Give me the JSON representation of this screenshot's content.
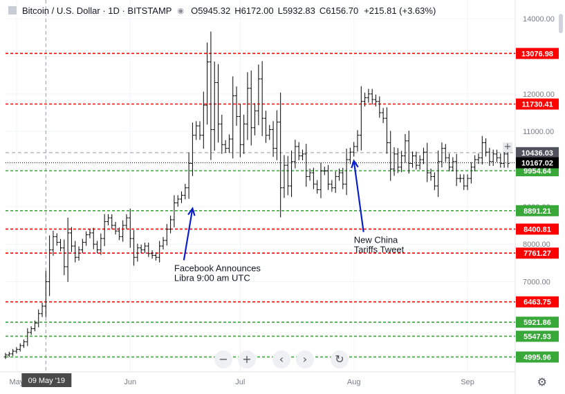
{
  "header": {
    "title": "Bitcoin / U.S. Dollar · 1D · BITSTAMP",
    "ohlc": [
      {
        "k": "O",
        "v": "5945.32"
      },
      {
        "k": "H",
        "v": "6172.00"
      },
      {
        "k": "L",
        "v": "5932.83"
      },
      {
        "k": "C",
        "v": "6156.70"
      }
    ],
    "change": "+215.81 (+3.63%)"
  },
  "icons": {
    "symbol": "bitcoin-icon",
    "visibility": "eye-icon",
    "zoom_out": "minus-icon",
    "zoom_in": "plus-icon",
    "scroll_left": "chevron-left-icon",
    "scroll_right": "chevron-right-icon",
    "reset": "rotate-icon",
    "settings": "gear-icon",
    "add_price_line": "plus-icon"
  },
  "nav": {
    "minus": "−",
    "plus": "+",
    "left": "‹",
    "right": "›",
    "reset": "↻",
    "gear": "⚙",
    "add": "+"
  },
  "colors": {
    "red": "#ff0000",
    "green": "#38a838",
    "grid": "#f0f3fa",
    "bar": "#000000",
    "arrow": "#0a1fc8",
    "axis_label": "#787b86"
  },
  "chart_data": {
    "type": "ohlc",
    "x_range": [
      "2019-04-28",
      "2019-09-14"
    ],
    "ylim": [
      4600,
      14500
    ],
    "y_ticks": [
      7000,
      8000,
      9000,
      10000,
      11000,
      12000,
      13000,
      14000
    ],
    "y_tick_labels": [
      "7000.00",
      "8000.00",
      "9000.00",
      "10000.00",
      "11000.00",
      "12000.00",
      "13000.00",
      "14000.00"
    ],
    "x_ticks": [
      {
        "date": "2019-05-01",
        "label": "May"
      },
      {
        "date": "2019-06-01",
        "label": "Jun"
      },
      {
        "date": "2019-07-01",
        "label": "Jul"
      },
      {
        "date": "2019-08-01",
        "label": "Aug"
      },
      {
        "date": "2019-09-01",
        "label": "Sep"
      }
    ],
    "crosshair": {
      "date": "2019-05-09",
      "label": "09 May '19"
    },
    "levels": [
      {
        "value": 13076.98,
        "label": "13076.98",
        "color": "red"
      },
      {
        "value": 11730.41,
        "label": "11730.41",
        "color": "red"
      },
      {
        "value": 9954.64,
        "label": "9954.64",
        "color": "green"
      },
      {
        "value": 8891.21,
        "label": "8891.21",
        "color": "green"
      },
      {
        "value": 8400.81,
        "label": "8400.81",
        "color": "red"
      },
      {
        "value": 7761.27,
        "label": "7761.27",
        "color": "red"
      },
      {
        "value": 6463.75,
        "label": "6463.75",
        "color": "red"
      },
      {
        "value": 5921.86,
        "label": "5921.86",
        "color": "green"
      },
      {
        "value": 5547.93,
        "label": "5547.93",
        "color": "green"
      },
      {
        "value": 4995.96,
        "label": "4995.96",
        "color": "green"
      }
    ],
    "price_tags": [
      {
        "value": 10436.03,
        "label": "10436.03",
        "style": "gray-dashed"
      },
      {
        "value": 10167.02,
        "label": "10167.02",
        "style": "black-dotted"
      }
    ],
    "annotations": [
      {
        "lines": [
          "Facebook Announces",
          "Libra 9:00 am UTC"
        ],
        "arrow_date": "2019-06-18",
        "arrow_value": 8950,
        "text_date": "2019-06-13",
        "text_value": 7500
      },
      {
        "lines": [
          "New China",
          "Tariffs Tweet"
        ],
        "arrow_date": "2019-08-01",
        "arrow_value": 10220,
        "text_date": "2019-08-01",
        "text_value": 8250
      }
    ],
    "closes": [
      5050,
      5080,
      5150,
      5200,
      5300,
      5400,
      5650,
      5750,
      5900,
      6150,
      6350,
      7000,
      7850,
      8200,
      8050,
      7900,
      7400,
      8300,
      7950,
      7650,
      7850,
      8050,
      8250,
      8300,
      8000,
      7850,
      8150,
      8600,
      8700,
      8500,
      8350,
      8200,
      8500,
      8700,
      8150,
      7650,
      7900,
      7850,
      7950,
      7750,
      7700,
      7650,
      7950,
      8100,
      8400,
      8650,
      9100,
      9200,
      9300,
      9500,
      10150,
      10900,
      11150,
      10900,
      11700,
      12850,
      11050,
      12300,
      11200,
      10650,
      10550,
      10800,
      11950,
      11400,
      10650,
      11200,
      12150,
      11100,
      11550,
      12400,
      11350,
      10900,
      11050,
      10550,
      11250,
      9500,
      10100,
      9550,
      10200,
      10600,
      10350,
      10400,
      9800,
      9900,
      9600,
      9450,
      9950,
      9950,
      9600,
      9500,
      9800,
      9900,
      9600,
      10250,
      10450,
      10600,
      10900,
      11800,
      11900,
      12000,
      11850,
      11800,
      11500,
      11350,
      10700,
      10000,
      10400,
      10050,
      10350,
      10750,
      10150,
      10350,
      10100,
      10250,
      10450,
      9900,
      9800,
      9550,
      10200,
      10550,
      10300,
      10050,
      10200,
      9750,
      9750,
      9550,
      9750,
      10050,
      10250,
      10300,
      10700,
      10450,
      10200,
      10400,
      10300,
      10150,
      10400,
      10150
    ]
  }
}
